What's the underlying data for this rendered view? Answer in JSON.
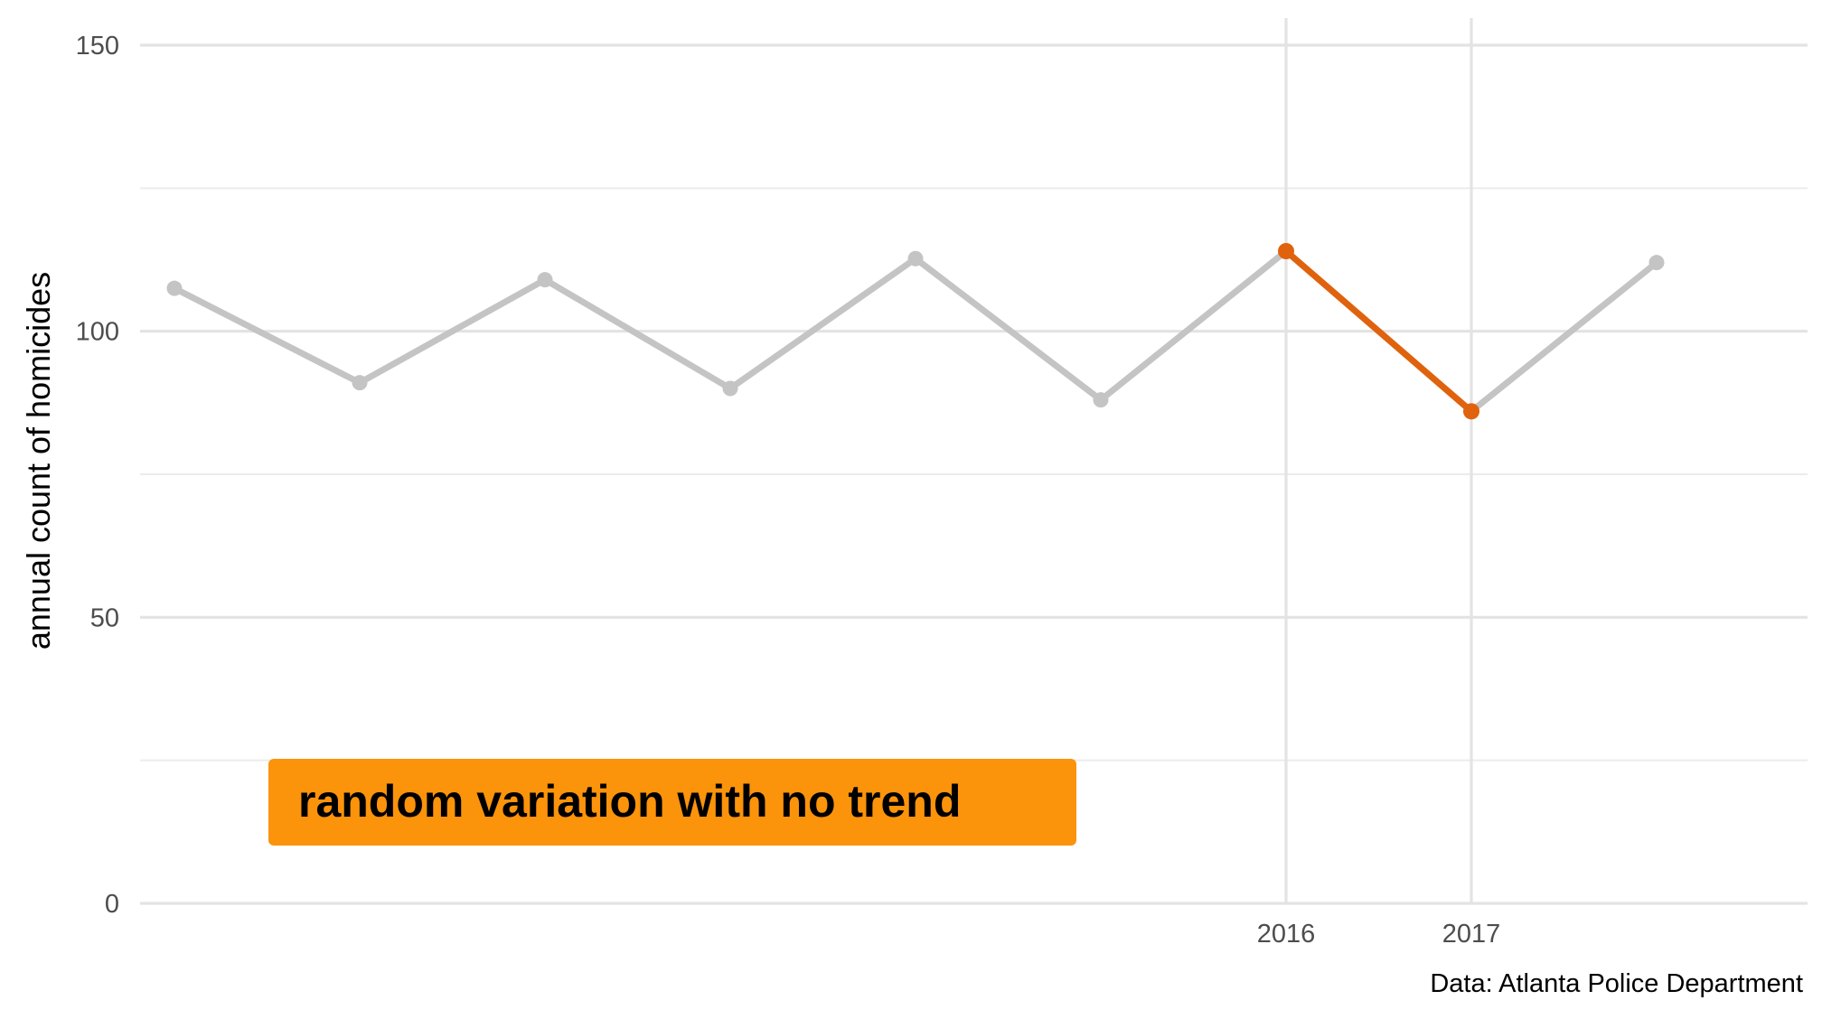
{
  "chart_data": {
    "type": "line",
    "title": "",
    "xlabel": "",
    "ylabel": "annual count of homicides",
    "ylim": [
      0,
      150
    ],
    "y_ticks": [
      0,
      50,
      100,
      150
    ],
    "x_ticks": [
      2016,
      2017
    ],
    "x": [
      2010,
      2011,
      2012,
      2013,
      2014,
      2015,
      2016,
      2017,
      2018
    ],
    "series": [
      {
        "name": "",
        "values": [
          107.5,
          91,
          109,
          90,
          112.7,
          88,
          114,
          86,
          112
        ],
        "color": "#c4c4c4"
      }
    ],
    "highlight": {
      "x": [
        2016,
        2017
      ],
      "values": [
        114,
        86
      ],
      "color": "#e0620d"
    },
    "annotation": {
      "text": "random variation with no trend",
      "fill": "#fb930b"
    },
    "caption": "Data: Atlanta Police Department",
    "grid": true,
    "legend": "none"
  }
}
